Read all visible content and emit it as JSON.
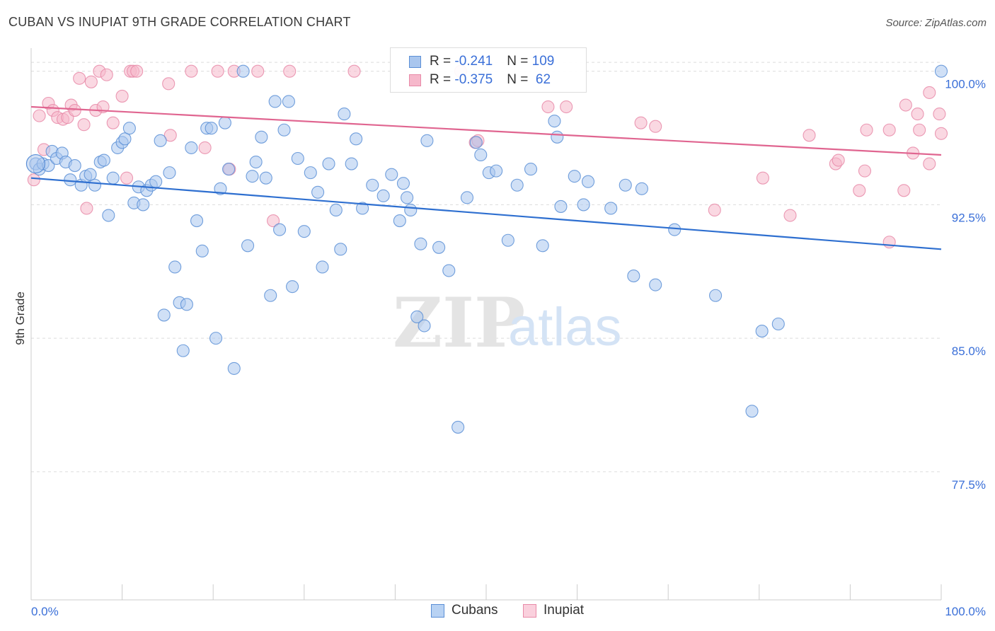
{
  "header": {
    "title": "CUBAN VS INUPIAT 9TH GRADE CORRELATION CHART",
    "source": "Source: ZipAtlas.com"
  },
  "watermark": {
    "zip": "ZIP",
    "atlas": "atlas"
  },
  "legend_top": {
    "cubans": {
      "r_label": "R = ",
      "r_value": "-0.241",
      "n_label": "N = ",
      "n_value": "109"
    },
    "inupiat": {
      "r_label": "R = ",
      "r_value": "-0.375",
      "n_label": "N = ",
      "n_value": " 62"
    }
  },
  "legend_bottom": {
    "cubans": "Cubans",
    "inupiat": "Inupiat"
  },
  "colors": {
    "cubans_fill": "#a9c6ee",
    "cubans_stroke": "#5b8fd6",
    "cubans_line": "#2e6fd0",
    "inupiat_fill": "#f6b8cb",
    "inupiat_stroke": "#e88aa8",
    "inupiat_line": "#e06590",
    "tick_label": "#3a6fd8",
    "grid": "#dcdcdc"
  },
  "chart_data": {
    "type": "scatter",
    "title": "CUBAN VS INUPIAT 9TH GRADE CORRELATION CHART",
    "xlabel": "",
    "ylabel": "9th Grade",
    "xlim": [
      0,
      100
    ],
    "ylim": [
      70.3,
      101.3
    ],
    "x_tick_labels": [
      "0.0%",
      "100.0%"
    ],
    "y_ticks": [
      100,
      92.5,
      85,
      77.5
    ],
    "y_tick_labels": [
      "100.0%",
      "92.5%",
      "85.0%",
      "77.5%"
    ],
    "grid": "horizontal dashed",
    "legend": "top-center",
    "series": [
      {
        "name": "Cubans",
        "trend": {
          "x": [
            0,
            100
          ],
          "y": [
            94.0,
            90.0
          ]
        },
        "points": [
          [
            0.5,
            94.8
          ],
          [
            0.9,
            94.5
          ],
          [
            1.3,
            94.8
          ],
          [
            1.9,
            94.7
          ],
          [
            2.3,
            95.5
          ],
          [
            2.8,
            95.1
          ],
          [
            3.4,
            95.4
          ],
          [
            3.8,
            94.9
          ],
          [
            4.3,
            93.9
          ],
          [
            4.8,
            94.7
          ],
          [
            5.5,
            93.6
          ],
          [
            6.0,
            94.1
          ],
          [
            6.5,
            94.2
          ],
          [
            7.0,
            93.6
          ],
          [
            7.6,
            94.9
          ],
          [
            8.0,
            95.0
          ],
          [
            8.5,
            91.9
          ],
          [
            9.0,
            94.0
          ],
          [
            9.5,
            95.7
          ],
          [
            10.0,
            96.0
          ],
          [
            10.3,
            96.2
          ],
          [
            10.8,
            96.8
          ],
          [
            11.3,
            92.6
          ],
          [
            11.8,
            93.5
          ],
          [
            12.3,
            92.5
          ],
          [
            12.7,
            93.3
          ],
          [
            13.2,
            93.6
          ],
          [
            13.7,
            93.8
          ],
          [
            14.2,
            96.1
          ],
          [
            14.6,
            86.3
          ],
          [
            15.2,
            94.3
          ],
          [
            15.8,
            89.0
          ],
          [
            16.3,
            87.0
          ],
          [
            16.7,
            84.3
          ],
          [
            17.1,
            86.9
          ],
          [
            17.6,
            95.7
          ],
          [
            18.2,
            91.6
          ],
          [
            18.8,
            89.9
          ],
          [
            19.3,
            96.8
          ],
          [
            19.8,
            96.8
          ],
          [
            20.3,
            85.0
          ],
          [
            20.8,
            93.4
          ],
          [
            21.3,
            97.1
          ],
          [
            21.7,
            94.5
          ],
          [
            22.3,
            83.3
          ],
          [
            23.3,
            100.0
          ],
          [
            23.8,
            90.2
          ],
          [
            24.3,
            94.1
          ],
          [
            24.7,
            94.9
          ],
          [
            25.3,
            96.3
          ],
          [
            25.8,
            94.0
          ],
          [
            26.3,
            87.4
          ],
          [
            26.8,
            98.3
          ],
          [
            27.3,
            91.1
          ],
          [
            27.8,
            96.7
          ],
          [
            28.3,
            98.3
          ],
          [
            28.7,
            87.9
          ],
          [
            29.3,
            95.1
          ],
          [
            30.0,
            91.0
          ],
          [
            30.7,
            94.3
          ],
          [
            31.5,
            93.2
          ],
          [
            32.0,
            89.0
          ],
          [
            32.7,
            94.8
          ],
          [
            33.5,
            92.2
          ],
          [
            34.0,
            90.0
          ],
          [
            34.4,
            97.6
          ],
          [
            35.2,
            94.8
          ],
          [
            35.7,
            96.2
          ],
          [
            36.4,
            92.3
          ],
          [
            37.5,
            93.6
          ],
          [
            38.7,
            93.0
          ],
          [
            39.6,
            94.2
          ],
          [
            40.5,
            91.6
          ],
          [
            40.9,
            93.7
          ],
          [
            41.3,
            92.9
          ],
          [
            41.7,
            92.2
          ],
          [
            42.4,
            86.2
          ],
          [
            42.8,
            90.3
          ],
          [
            43.2,
            85.7
          ],
          [
            43.5,
            96.1
          ],
          [
            44.8,
            90.1
          ],
          [
            45.9,
            88.8
          ],
          [
            46.9,
            80.0
          ],
          [
            47.9,
            92.9
          ],
          [
            48.9,
            96.0
          ],
          [
            49.4,
            95.3
          ],
          [
            50.3,
            94.3
          ],
          [
            51.1,
            94.4
          ],
          [
            52.4,
            90.5
          ],
          [
            53.4,
            93.6
          ],
          [
            54.9,
            94.5
          ],
          [
            56.2,
            90.2
          ],
          [
            57.5,
            97.2
          ],
          [
            57.8,
            96.3
          ],
          [
            58.2,
            92.4
          ],
          [
            59.7,
            94.1
          ],
          [
            60.7,
            92.5
          ],
          [
            61.2,
            93.8
          ],
          [
            63.7,
            92.3
          ],
          [
            65.3,
            93.6
          ],
          [
            66.2,
            88.5
          ],
          [
            67.1,
            93.4
          ],
          [
            68.6,
            88.0
          ],
          [
            70.7,
            91.1
          ],
          [
            75.2,
            87.4
          ],
          [
            79.2,
            80.9
          ],
          [
            80.3,
            85.4
          ],
          [
            82.1,
            85.8
          ],
          [
            100.0,
            100.0
          ]
        ]
      },
      {
        "name": "Inupiat",
        "trend": {
          "x": [
            0,
            100
          ],
          "y": [
            98.0,
            95.3
          ]
        },
        "points": [
          [
            0.3,
            93.9
          ],
          [
            0.9,
            97.5
          ],
          [
            1.4,
            95.6
          ],
          [
            1.9,
            98.2
          ],
          [
            2.4,
            97.8
          ],
          [
            2.9,
            97.4
          ],
          [
            3.5,
            97.3
          ],
          [
            4.0,
            97.4
          ],
          [
            4.4,
            98.1
          ],
          [
            4.8,
            97.8
          ],
          [
            5.3,
            99.6
          ],
          [
            5.8,
            97.0
          ],
          [
            6.1,
            92.3
          ],
          [
            6.6,
            99.4
          ],
          [
            7.1,
            97.8
          ],
          [
            7.5,
            100.0
          ],
          [
            7.9,
            98.0
          ],
          [
            8.3,
            99.8
          ],
          [
            9.0,
            97.1
          ],
          [
            10.0,
            98.6
          ],
          [
            10.5,
            94.0
          ],
          [
            10.9,
            100.0
          ],
          [
            11.2,
            100.0
          ],
          [
            11.6,
            100.0
          ],
          [
            15.1,
            99.3
          ],
          [
            15.3,
            96.4
          ],
          [
            17.6,
            100.0
          ],
          [
            19.1,
            95.7
          ],
          [
            20.5,
            100.0
          ],
          [
            21.8,
            94.5
          ],
          [
            22.3,
            100.0
          ],
          [
            24.9,
            100.0
          ],
          [
            26.6,
            91.6
          ],
          [
            28.4,
            100.0
          ],
          [
            35.5,
            100.0
          ],
          [
            47.2,
            100.0
          ],
          [
            48.8,
            96.0
          ],
          [
            49.1,
            96.1
          ],
          [
            56.8,
            98.0
          ],
          [
            58.8,
            98.0
          ],
          [
            67.0,
            97.1
          ],
          [
            68.6,
            96.9
          ],
          [
            75.1,
            92.2
          ],
          [
            80.4,
            94.0
          ],
          [
            83.4,
            91.9
          ],
          [
            85.5,
            96.4
          ],
          [
            88.4,
            94.8
          ],
          [
            95.9,
            93.3
          ],
          [
            98.7,
            94.8
          ],
          [
            99.8,
            97.6
          ],
          [
            96.1,
            98.1
          ],
          [
            97.4,
            97.6
          ],
          [
            98.7,
            98.8
          ],
          [
            97.6,
            96.7
          ],
          [
            100.0,
            96.5
          ],
          [
            96.9,
            95.4
          ],
          [
            94.3,
            96.7
          ],
          [
            91.8,
            96.7
          ],
          [
            91.6,
            94.4
          ],
          [
            91.0,
            93.3
          ],
          [
            88.7,
            95.0
          ],
          [
            94.3,
            90.4
          ]
        ]
      }
    ]
  }
}
